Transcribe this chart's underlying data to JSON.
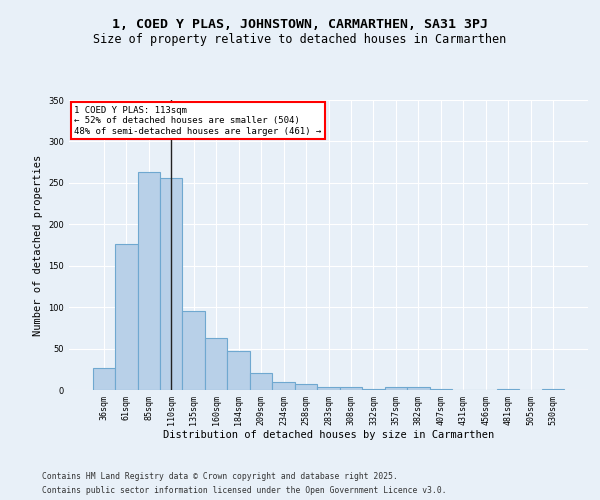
{
  "title1": "1, COED Y PLAS, JOHNSTOWN, CARMARTHEN, SA31 3PJ",
  "title2": "Size of property relative to detached houses in Carmarthen",
  "xlabel": "Distribution of detached houses by size in Carmarthen",
  "ylabel": "Number of detached properties",
  "categories": [
    "36sqm",
    "61sqm",
    "85sqm",
    "110sqm",
    "135sqm",
    "160sqm",
    "184sqm",
    "209sqm",
    "234sqm",
    "258sqm",
    "283sqm",
    "308sqm",
    "332sqm",
    "357sqm",
    "382sqm",
    "407sqm",
    "431sqm",
    "456sqm",
    "481sqm",
    "505sqm",
    "530sqm"
  ],
  "values": [
    27,
    176,
    263,
    256,
    95,
    63,
    47,
    20,
    10,
    7,
    4,
    4,
    1,
    4,
    4,
    1,
    0,
    0,
    1,
    0,
    1
  ],
  "bar_color": "#b8d0e8",
  "bar_edge_color": "#6fa8d0",
  "bar_linewidth": 0.8,
  "vline_x_index": 3,
  "vline_color": "#222222",
  "annotation_text": "1 COED Y PLAS: 113sqm\n← 52% of detached houses are smaller (504)\n48% of semi-detached houses are larger (461) →",
  "annotation_box_color": "white",
  "annotation_box_edge": "red",
  "ylim": [
    0,
    350
  ],
  "yticks": [
    0,
    50,
    100,
    150,
    200,
    250,
    300,
    350
  ],
  "bg_color": "#e8f0f8",
  "axes_bg_color": "#e8f0f8",
  "grid_color": "#ffffff",
  "footnote1": "Contains HM Land Registry data © Crown copyright and database right 2025.",
  "footnote2": "Contains public sector information licensed under the Open Government Licence v3.0.",
  "title1_fontsize": 9.5,
  "title2_fontsize": 8.5,
  "tick_fontsize": 6,
  "label_fontsize": 7.5,
  "annot_fontsize": 6.5,
  "footnote_fontsize": 5.8
}
